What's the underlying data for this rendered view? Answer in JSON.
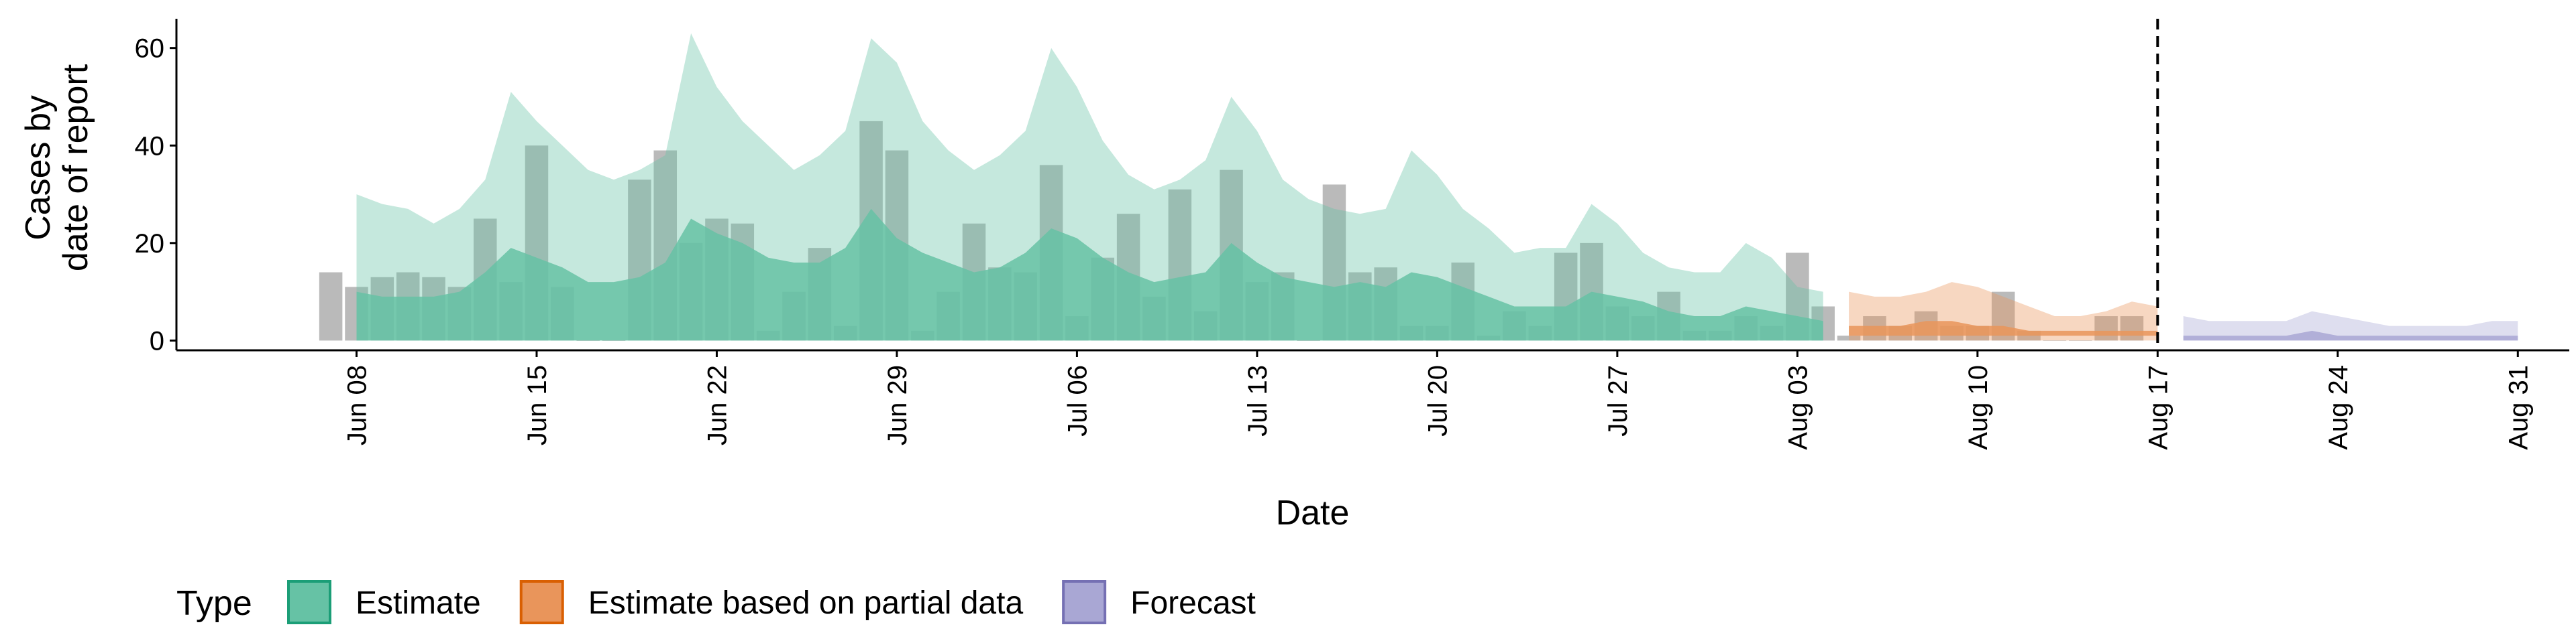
{
  "chart_data": {
    "type": "bar",
    "xlabel": "Date",
    "ylabel_lines": [
      "Cases by",
      "date of report"
    ],
    "ylim": [
      -2,
      66
    ],
    "y_ticks": [
      0,
      20,
      40,
      60
    ],
    "x_range": [
      "2020-06-01",
      "2020-09-02"
    ],
    "x_ticks": [
      {
        "date": "2020-06-08",
        "label": "Jun 08"
      },
      {
        "date": "2020-06-15",
        "label": "Jun 15"
      },
      {
        "date": "2020-06-22",
        "label": "Jun 22"
      },
      {
        "date": "2020-06-29",
        "label": "Jun 29"
      },
      {
        "date": "2020-07-06",
        "label": "Jul 06"
      },
      {
        "date": "2020-07-13",
        "label": "Jul 13"
      },
      {
        "date": "2020-07-20",
        "label": "Jul 20"
      },
      {
        "date": "2020-07-27",
        "label": "Jul 27"
      },
      {
        "date": "2020-08-03",
        "label": "Aug 03"
      },
      {
        "date": "2020-08-10",
        "label": "Aug 10"
      },
      {
        "date": "2020-08-17",
        "label": "Aug 17"
      },
      {
        "date": "2020-08-24",
        "label": "Aug 24"
      },
      {
        "date": "2020-08-31",
        "label": "Aug 31"
      }
    ],
    "vline_date": "2020-08-17",
    "grid": false,
    "legend": {
      "title": "Type",
      "position": "bottom",
      "entries": [
        {
          "label": "Estimate",
          "fill": "#66c2a5",
          "stroke": "#1b9e77"
        },
        {
          "label": "Estimate based on partial data",
          "fill": "#e9955b",
          "stroke": "#d95f02"
        },
        {
          "label": "Forecast",
          "fill": "#a9a7d4",
          "stroke": "#7570b3"
        }
      ]
    },
    "bars": {
      "dates": [
        "2020-06-07",
        "2020-06-08",
        "2020-06-09",
        "2020-06-10",
        "2020-06-11",
        "2020-06-12",
        "2020-06-13",
        "2020-06-14",
        "2020-06-15",
        "2020-06-16",
        "2020-06-17",
        "2020-06-18",
        "2020-06-19",
        "2020-06-20",
        "2020-06-21",
        "2020-06-22",
        "2020-06-23",
        "2020-06-24",
        "2020-06-25",
        "2020-06-26",
        "2020-06-27",
        "2020-06-28",
        "2020-06-29",
        "2020-06-30",
        "2020-07-01",
        "2020-07-02",
        "2020-07-03",
        "2020-07-04",
        "2020-07-05",
        "2020-07-06",
        "2020-07-07",
        "2020-07-08",
        "2020-07-09",
        "2020-07-10",
        "2020-07-11",
        "2020-07-12",
        "2020-07-13",
        "2020-07-14",
        "2020-07-15",
        "2020-07-16",
        "2020-07-17",
        "2020-07-18",
        "2020-07-19",
        "2020-07-20",
        "2020-07-21",
        "2020-07-22",
        "2020-07-23",
        "2020-07-24",
        "2020-07-25",
        "2020-07-26",
        "2020-07-27",
        "2020-07-28",
        "2020-07-29",
        "2020-07-30",
        "2020-07-31",
        "2020-08-01",
        "2020-08-02",
        "2020-08-03",
        "2020-08-04",
        "2020-08-05",
        "2020-08-06",
        "2020-08-07",
        "2020-08-08",
        "2020-08-09",
        "2020-08-10",
        "2020-08-11",
        "2020-08-12",
        "2020-08-13",
        "2020-08-14",
        "2020-08-15",
        "2020-08-16"
      ],
      "values": [
        14,
        11,
        13,
        14,
        13,
        11,
        25,
        12,
        40,
        11,
        0,
        0,
        33,
        39,
        20,
        25,
        24,
        2,
        10,
        19,
        3,
        45,
        39,
        2,
        10,
        24,
        15,
        14,
        36,
        5,
        17,
        26,
        9,
        31,
        6,
        35,
        12,
        14,
        0,
        32,
        14,
        15,
        3,
        3,
        16,
        1,
        6,
        3,
        18,
        20,
        7,
        5,
        10,
        2,
        2,
        5,
        3,
        18,
        7,
        1,
        5,
        3,
        6,
        3,
        3,
        10,
        2,
        0,
        0,
        5,
        5
      ]
    },
    "series": [
      {
        "name": "Estimate",
        "dates": [
          "2020-06-08",
          "2020-06-09",
          "2020-06-10",
          "2020-06-11",
          "2020-06-12",
          "2020-06-13",
          "2020-06-14",
          "2020-06-15",
          "2020-06-16",
          "2020-06-17",
          "2020-06-18",
          "2020-06-19",
          "2020-06-20",
          "2020-06-21",
          "2020-06-22",
          "2020-06-23",
          "2020-06-24",
          "2020-06-25",
          "2020-06-26",
          "2020-06-27",
          "2020-06-28",
          "2020-06-29",
          "2020-06-30",
          "2020-07-01",
          "2020-07-02",
          "2020-07-03",
          "2020-07-04",
          "2020-07-05",
          "2020-07-06",
          "2020-07-07",
          "2020-07-08",
          "2020-07-09",
          "2020-07-10",
          "2020-07-11",
          "2020-07-12",
          "2020-07-13",
          "2020-07-14",
          "2020-07-15",
          "2020-07-16",
          "2020-07-17",
          "2020-07-18",
          "2020-07-19",
          "2020-07-20",
          "2020-07-21",
          "2020-07-22",
          "2020-07-23",
          "2020-07-24",
          "2020-07-25",
          "2020-07-26",
          "2020-07-27",
          "2020-07-28",
          "2020-07-29",
          "2020-07-30",
          "2020-07-31",
          "2020-08-01",
          "2020-08-02",
          "2020-08-03",
          "2020-08-04"
        ],
        "upper": [
          30,
          28,
          27,
          24,
          27,
          33,
          51,
          45,
          40,
          35,
          33,
          35,
          38,
          63,
          52,
          45,
          40,
          35,
          38,
          43,
          62,
          57,
          45,
          39,
          35,
          38,
          43,
          60,
          52,
          41,
          34,
          31,
          33,
          37,
          50,
          43,
          33,
          29,
          27,
          26,
          27,
          39,
          34,
          27,
          23,
          18,
          19,
          19,
          28,
          24,
          18,
          15,
          14,
          14,
          20,
          17,
          11,
          10
        ],
        "lower": [
          0,
          0,
          0,
          0,
          0,
          0,
          0,
          0,
          0,
          0,
          0,
          0,
          0,
          0,
          0,
          0,
          0,
          0,
          0,
          0,
          0,
          0,
          0,
          0,
          0,
          0,
          0,
          0,
          0,
          0,
          0,
          0,
          0,
          0,
          0,
          0,
          0,
          0,
          0,
          0,
          0,
          0,
          0,
          0,
          0,
          0,
          0,
          0,
          0,
          0,
          0,
          0,
          0,
          0,
          0,
          0,
          0,
          0
        ],
        "inner_upper": [
          10,
          9,
          9,
          9,
          10,
          14,
          19,
          17,
          15,
          12,
          12,
          13,
          16,
          25,
          22,
          20,
          17,
          16,
          16,
          19,
          27,
          21,
          18,
          16,
          14,
          15,
          18,
          23,
          21,
          17,
          14,
          12,
          13,
          14,
          20,
          16,
          13,
          12,
          11,
          12,
          11,
          14,
          13,
          11,
          9,
          7,
          7,
          7,
          10,
          9,
          8,
          6,
          5,
          5,
          7,
          6,
          5,
          4
        ],
        "inner_lower": [
          0,
          0,
          0,
          0,
          0,
          0,
          0,
          0,
          0,
          0,
          0,
          0,
          0,
          0,
          0,
          0,
          0,
          0,
          0,
          0,
          0,
          0,
          0,
          0,
          0,
          0,
          0,
          0,
          0,
          0,
          0,
          0,
          0,
          0,
          0,
          0,
          0,
          0,
          0,
          0,
          0,
          0,
          0,
          0,
          0,
          0,
          0,
          0,
          0,
          0,
          0,
          0,
          0,
          0,
          0,
          0,
          0,
          0
        ]
      },
      {
        "name": "Estimate based on partial data",
        "dates": [
          "2020-08-05",
          "2020-08-06",
          "2020-08-07",
          "2020-08-08",
          "2020-08-09",
          "2020-08-10",
          "2020-08-11",
          "2020-08-12",
          "2020-08-13",
          "2020-08-14",
          "2020-08-15",
          "2020-08-16",
          "2020-08-17"
        ],
        "upper": [
          10,
          9,
          9,
          10,
          12,
          11,
          9,
          7,
          5,
          5,
          6,
          8,
          7
        ],
        "lower": [
          0,
          0,
          0,
          0,
          0,
          0,
          0,
          0,
          0,
          0,
          0,
          0,
          0
        ],
        "inner_upper": [
          3,
          3,
          3,
          4,
          4,
          3,
          3,
          2,
          2,
          2,
          2,
          2,
          2
        ],
        "inner_lower": [
          1,
          1,
          1,
          1,
          1,
          1,
          1,
          1,
          1,
          1,
          1,
          1,
          1
        ]
      },
      {
        "name": "Forecast",
        "dates": [
          "2020-08-18",
          "2020-08-19",
          "2020-08-20",
          "2020-08-21",
          "2020-08-22",
          "2020-08-23",
          "2020-08-24",
          "2020-08-25",
          "2020-08-26",
          "2020-08-27",
          "2020-08-28",
          "2020-08-29",
          "2020-08-30",
          "2020-08-31"
        ],
        "upper": [
          5,
          4,
          4,
          4,
          4,
          6,
          5,
          4,
          3,
          3,
          3,
          3,
          4,
          4
        ],
        "lower": [
          0,
          0,
          0,
          0,
          0,
          0,
          0,
          0,
          0,
          0,
          0,
          0,
          0,
          0
        ],
        "inner_upper": [
          1,
          1,
          1,
          1,
          1,
          2,
          1,
          1,
          1,
          1,
          1,
          1,
          1,
          1
        ],
        "inner_lower": [
          0,
          0,
          0,
          0,
          0,
          0,
          0,
          0,
          0,
          0,
          0,
          0,
          0,
          0
        ]
      }
    ]
  }
}
